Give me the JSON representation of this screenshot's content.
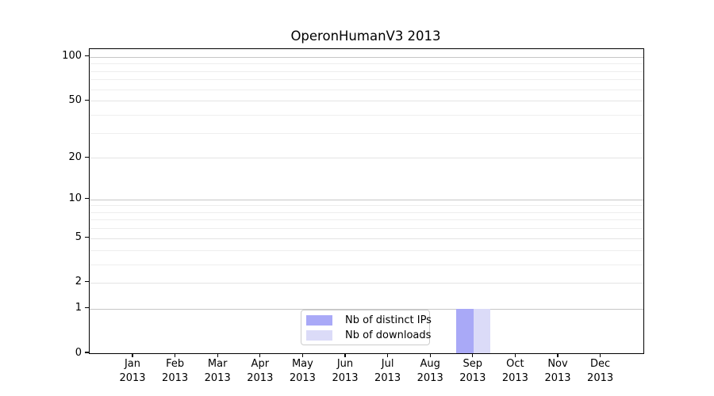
{
  "chart_data": {
    "type": "bar",
    "title": "OperonHumanV3 2013",
    "categories": [
      "Jan 2013",
      "Feb 2013",
      "Mar 2013",
      "Apr 2013",
      "May 2013",
      "Jun 2013",
      "Jul 2013",
      "Aug 2013",
      "Sep 2013",
      "Oct 2013",
      "Nov 2013",
      "Dec 2013"
    ],
    "series": [
      {
        "name": "Nb of distinct IPs",
        "color": "#a9a9f7",
        "values": [
          0,
          0,
          0,
          0,
          0,
          0,
          0,
          0,
          1,
          0,
          0,
          0
        ]
      },
      {
        "name": "Nb of downloads",
        "color": "#dbdbf8",
        "values": [
          0,
          0,
          0,
          0,
          0,
          0,
          0,
          0,
          1,
          0,
          0,
          0
        ]
      }
    ],
    "xlabel": "",
    "ylabel": "",
    "yscale": "log1p",
    "ylim": [
      0,
      113
    ],
    "y_major_ticks": [
      0,
      1,
      2,
      5,
      10,
      20,
      50,
      100
    ],
    "y_minor_ticks": [
      3,
      4,
      6,
      7,
      8,
      9,
      30,
      40,
      60,
      70,
      80,
      90
    ],
    "y_decade_lines": [
      1,
      10,
      100
    ],
    "grid": true,
    "legend_position": "lower center"
  },
  "colors": {
    "spine": "#000000",
    "grid_decade": "#c6c6c6",
    "grid_major": "#e4e4e4",
    "grid_minor": "#eeeeee",
    "legend_border": "#cccccc",
    "text": "#000000"
  }
}
